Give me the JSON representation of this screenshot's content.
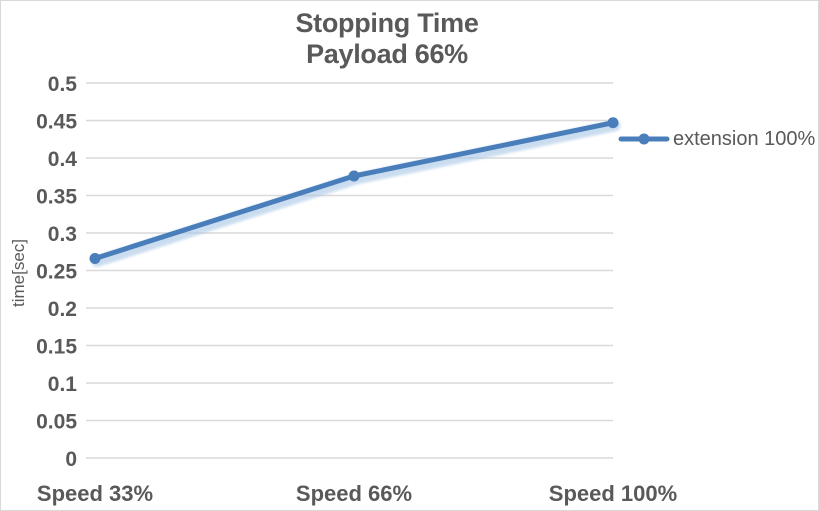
{
  "title": {
    "line1": "Stopping Time",
    "line2": "Payload 66%"
  },
  "legend": {
    "position": "right",
    "items": [
      {
        "label": "extension 100%"
      }
    ]
  },
  "colors": {
    "series": "#4a7ebb",
    "series_glow": "#a8c6e5",
    "gridline": "#d9d9d9",
    "text": "#595959",
    "background": "#ffffff",
    "border": "#d9d9d9"
  },
  "chart_data": {
    "type": "line",
    "title": "Stopping Time",
    "subtitle": "Payload 66%",
    "categories": [
      "Speed 33%",
      "Speed 66%",
      "Speed 100%"
    ],
    "series": [
      {
        "name": "extension 100%",
        "values": [
          0.266,
          0.376,
          0.447
        ]
      }
    ],
    "xlabel": "",
    "ylabel": "time[sec]",
    "ylim": [
      0,
      0.5
    ],
    "ytick_step": 0.05,
    "ytick_labels": [
      "0",
      "0.05",
      "0.1",
      "0.15",
      "0.2",
      "0.25",
      "0.3",
      "0.35",
      "0.4",
      "0.45",
      "0.5"
    ],
    "grid": true,
    "legend_position": "right",
    "marker": "circle",
    "axis_position": "on_tick_marks"
  }
}
